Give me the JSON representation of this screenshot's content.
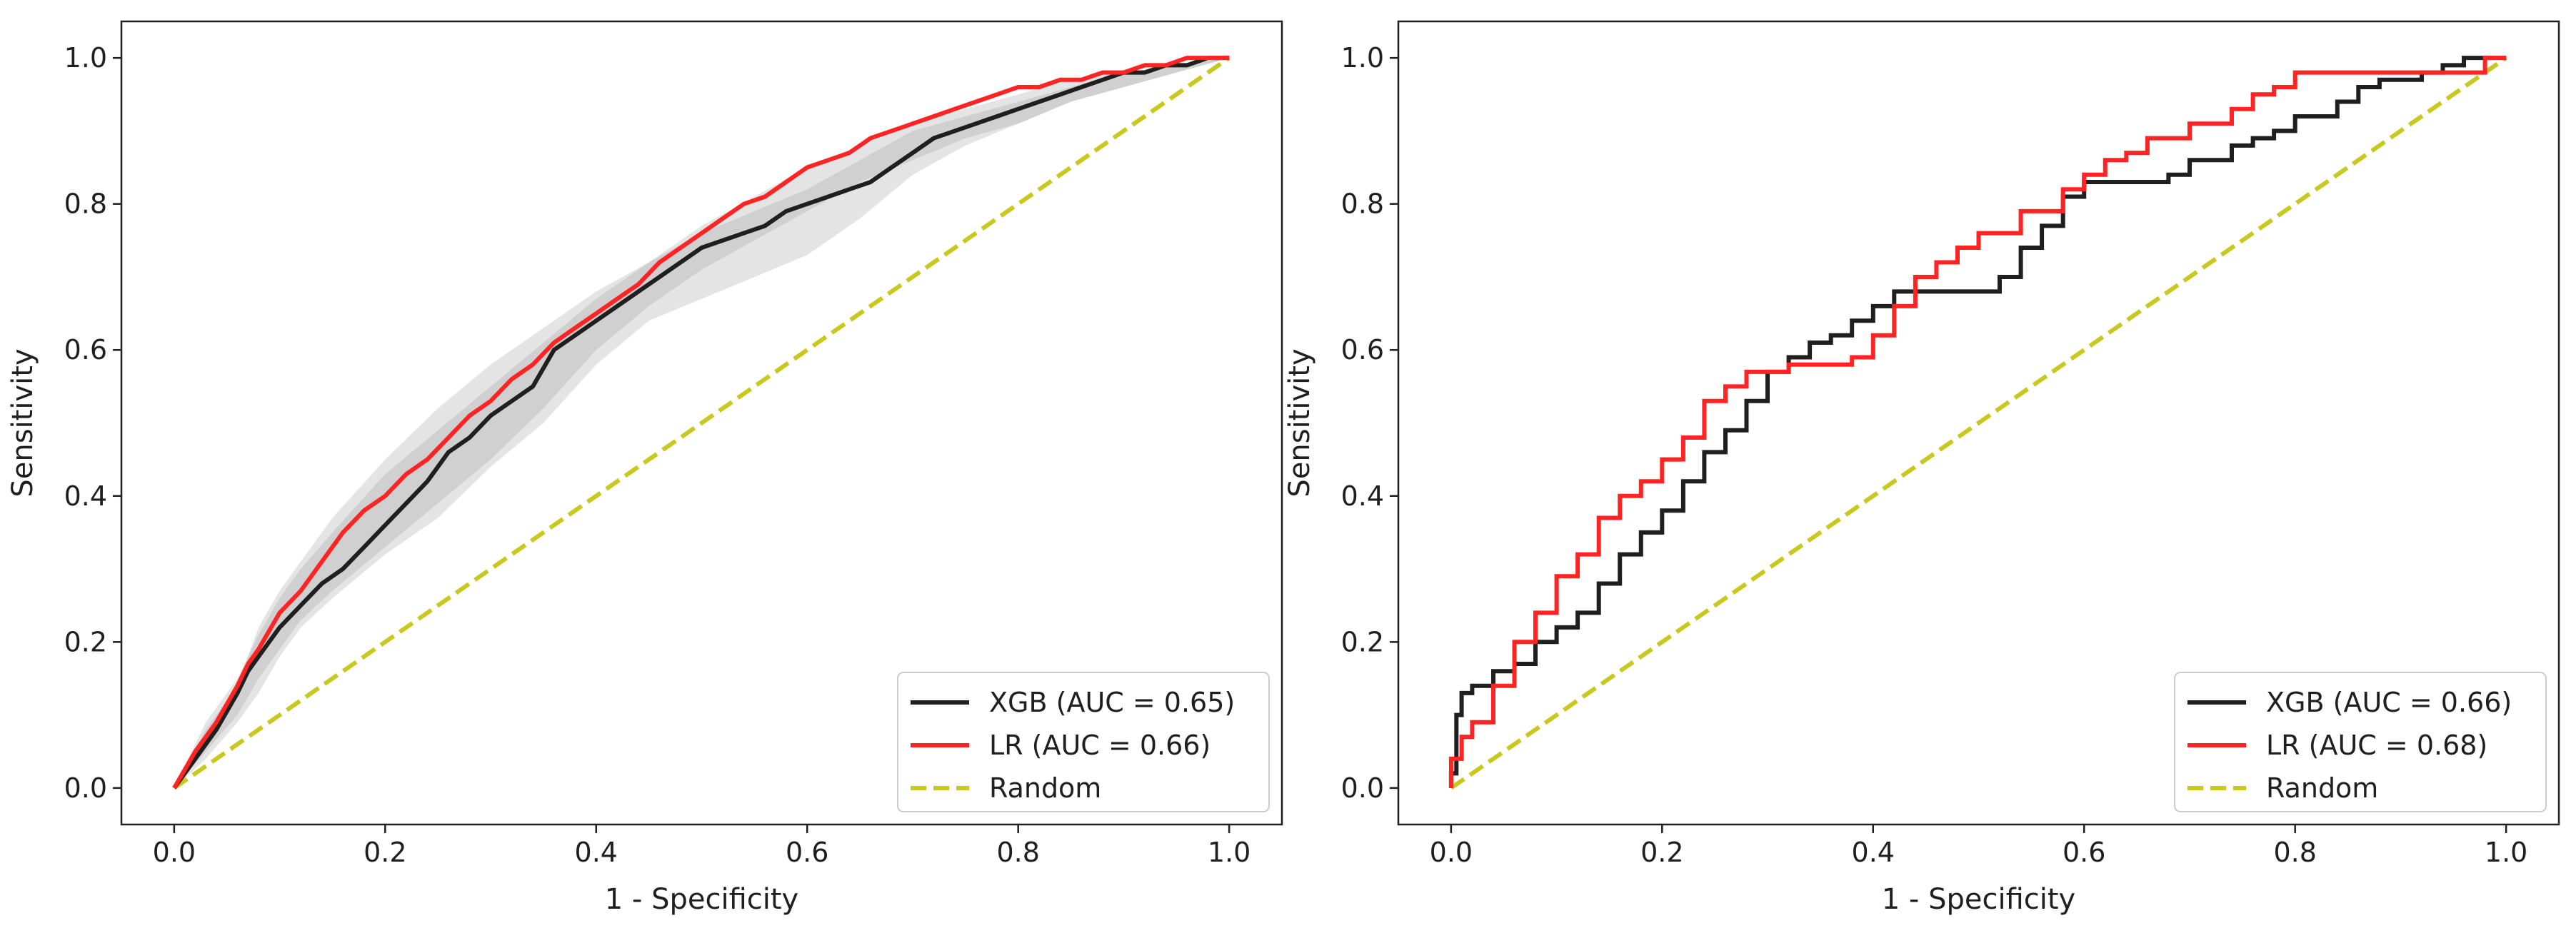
{
  "chart_data": [
    {
      "type": "line",
      "title": "",
      "xlabel": "1 - Specificity",
      "ylabel": "Sensitivity",
      "xlim": [
        -0.05,
        1.05
      ],
      "ylim": [
        -0.05,
        1.05
      ],
      "xticks": [
        0.0,
        0.2,
        0.4,
        0.6,
        0.8,
        1.0
      ],
      "yticks": [
        0.0,
        0.2,
        0.4,
        0.6,
        0.8,
        1.0
      ],
      "xtick_labels": [
        "0.0",
        "0.2",
        "0.4",
        "0.6",
        "0.8",
        "1.0"
      ],
      "ytick_labels": [
        "0.0",
        "0.2",
        "0.4",
        "0.6",
        "0.8",
        "1.0"
      ],
      "legend_position": "bottom-right",
      "confidence_bands": [
        {
          "name": "XGB band",
          "color": "#9e9e9e",
          "x": [
            0.0,
            0.03,
            0.06,
            0.08,
            0.1,
            0.12,
            0.15,
            0.2,
            0.25,
            0.3,
            0.35,
            0.4,
            0.45,
            0.5,
            0.55,
            0.6,
            0.65,
            0.7,
            0.75,
            0.8,
            0.85,
            0.9,
            0.95,
            1.0
          ],
          "lower": [
            0.0,
            0.04,
            0.09,
            0.13,
            0.18,
            0.22,
            0.26,
            0.32,
            0.37,
            0.44,
            0.5,
            0.58,
            0.64,
            0.67,
            0.7,
            0.73,
            0.78,
            0.84,
            0.88,
            0.91,
            0.94,
            0.96,
            0.98,
            1.0
          ],
          "upper": [
            0.0,
            0.08,
            0.14,
            0.22,
            0.27,
            0.31,
            0.37,
            0.45,
            0.52,
            0.58,
            0.63,
            0.68,
            0.72,
            0.76,
            0.79,
            0.82,
            0.86,
            0.9,
            0.92,
            0.94,
            0.96,
            0.98,
            0.99,
            1.0
          ]
        },
        {
          "name": "LR band",
          "color": "#9e9e9e",
          "x": [
            0.0,
            0.03,
            0.06,
            0.08,
            0.1,
            0.12,
            0.15,
            0.2,
            0.25,
            0.3,
            0.35,
            0.4,
            0.45,
            0.5,
            0.55,
            0.6,
            0.65,
            0.7,
            0.75,
            0.8,
            0.85,
            0.9,
            0.95,
            1.0
          ],
          "lower": [
            0.0,
            0.05,
            0.1,
            0.15,
            0.19,
            0.23,
            0.27,
            0.33,
            0.39,
            0.45,
            0.52,
            0.6,
            0.66,
            0.71,
            0.75,
            0.79,
            0.83,
            0.86,
            0.89,
            0.91,
            0.94,
            0.96,
            0.98,
            1.0
          ],
          "upper": [
            0.0,
            0.09,
            0.15,
            0.21,
            0.26,
            0.3,
            0.35,
            0.43,
            0.49,
            0.55,
            0.61,
            0.67,
            0.72,
            0.77,
            0.81,
            0.85,
            0.88,
            0.91,
            0.93,
            0.95,
            0.97,
            0.98,
            0.99,
            1.0
          ]
        }
      ],
      "series": [
        {
          "name": "XGB (AUC = 0.65)",
          "color": "#1f1f1f",
          "style": "solid",
          "x": [
            0.0,
            0.02,
            0.04,
            0.06,
            0.07,
            0.08,
            0.1,
            0.12,
            0.14,
            0.16,
            0.18,
            0.2,
            0.22,
            0.24,
            0.26,
            0.28,
            0.3,
            0.32,
            0.34,
            0.36,
            0.38,
            0.4,
            0.42,
            0.44,
            0.46,
            0.48,
            0.5,
            0.52,
            0.54,
            0.56,
            0.58,
            0.6,
            0.62,
            0.64,
            0.66,
            0.68,
            0.7,
            0.72,
            0.74,
            0.76,
            0.78,
            0.8,
            0.82,
            0.84,
            0.86,
            0.88,
            0.9,
            0.92,
            0.94,
            0.96,
            0.98,
            1.0
          ],
          "y": [
            0.0,
            0.04,
            0.08,
            0.13,
            0.16,
            0.18,
            0.22,
            0.25,
            0.28,
            0.3,
            0.33,
            0.36,
            0.39,
            0.42,
            0.46,
            0.48,
            0.51,
            0.53,
            0.55,
            0.6,
            0.62,
            0.64,
            0.66,
            0.68,
            0.7,
            0.72,
            0.74,
            0.75,
            0.76,
            0.77,
            0.79,
            0.8,
            0.81,
            0.82,
            0.83,
            0.85,
            0.87,
            0.89,
            0.9,
            0.91,
            0.92,
            0.93,
            0.94,
            0.95,
            0.96,
            0.97,
            0.98,
            0.98,
            0.99,
            0.99,
            1.0,
            1.0
          ]
        },
        {
          "name": "LR (AUC = 0.66)",
          "color": "#ff2424",
          "style": "solid",
          "x": [
            0.0,
            0.02,
            0.04,
            0.06,
            0.07,
            0.08,
            0.1,
            0.12,
            0.14,
            0.16,
            0.18,
            0.2,
            0.22,
            0.24,
            0.26,
            0.28,
            0.3,
            0.32,
            0.34,
            0.36,
            0.38,
            0.4,
            0.42,
            0.44,
            0.46,
            0.48,
            0.5,
            0.52,
            0.54,
            0.56,
            0.58,
            0.6,
            0.62,
            0.64,
            0.66,
            0.68,
            0.7,
            0.72,
            0.74,
            0.76,
            0.78,
            0.8,
            0.82,
            0.84,
            0.86,
            0.88,
            0.9,
            0.92,
            0.94,
            0.96,
            0.98,
            1.0
          ],
          "y": [
            0.0,
            0.05,
            0.09,
            0.14,
            0.17,
            0.19,
            0.24,
            0.27,
            0.31,
            0.35,
            0.38,
            0.4,
            0.43,
            0.45,
            0.48,
            0.51,
            0.53,
            0.56,
            0.58,
            0.61,
            0.63,
            0.65,
            0.67,
            0.69,
            0.72,
            0.74,
            0.76,
            0.78,
            0.8,
            0.81,
            0.83,
            0.85,
            0.86,
            0.87,
            0.89,
            0.9,
            0.91,
            0.92,
            0.93,
            0.94,
            0.95,
            0.96,
            0.96,
            0.97,
            0.97,
            0.98,
            0.98,
            0.99,
            0.99,
            1.0,
            1.0,
            1.0
          ]
        },
        {
          "name": "Random",
          "color": "#c8c81e",
          "style": "dashed",
          "x": [
            0.0,
            1.0
          ],
          "y": [
            0.0,
            1.0
          ]
        }
      ]
    },
    {
      "type": "line",
      "title": "",
      "xlabel": "1 - Specificity",
      "ylabel": "Sensitivity",
      "xlim": [
        -0.05,
        1.05
      ],
      "ylim": [
        -0.05,
        1.05
      ],
      "xticks": [
        0.0,
        0.2,
        0.4,
        0.6,
        0.8,
        1.0
      ],
      "yticks": [
        0.0,
        0.2,
        0.4,
        0.6,
        0.8,
        1.0
      ],
      "xtick_labels": [
        "0.0",
        "0.2",
        "0.4",
        "0.6",
        "0.8",
        "1.0"
      ],
      "ytick_labels": [
        "0.0",
        "0.2",
        "0.4",
        "0.6",
        "0.8",
        "1.0"
      ],
      "legend_position": "bottom-right",
      "confidence_bands": [],
      "series": [
        {
          "name": "XGB (AUC = 0.66)",
          "color": "#1f1f1f",
          "style": "step",
          "x": [
            0.0,
            0.0,
            0.005,
            0.005,
            0.01,
            0.01,
            0.02,
            0.02,
            0.04,
            0.04,
            0.06,
            0.06,
            0.08,
            0.08,
            0.1,
            0.1,
            0.12,
            0.12,
            0.14,
            0.14,
            0.16,
            0.16,
            0.18,
            0.18,
            0.2,
            0.2,
            0.22,
            0.22,
            0.24,
            0.24,
            0.26,
            0.26,
            0.28,
            0.28,
            0.3,
            0.3,
            0.32,
            0.32,
            0.34,
            0.34,
            0.36,
            0.36,
            0.38,
            0.38,
            0.4,
            0.4,
            0.42,
            0.42,
            0.52,
            0.52,
            0.54,
            0.54,
            0.56,
            0.56,
            0.58,
            0.58,
            0.6,
            0.6,
            0.68,
            0.68,
            0.7,
            0.7,
            0.74,
            0.74,
            0.76,
            0.76,
            0.78,
            0.78,
            0.8,
            0.8,
            0.84,
            0.84,
            0.86,
            0.86,
            0.88,
            0.88,
            0.92,
            0.92,
            0.94,
            0.94,
            0.96,
            0.96,
            1.0
          ],
          "y": [
            0.0,
            0.02,
            0.02,
            0.1,
            0.1,
            0.13,
            0.13,
            0.14,
            0.14,
            0.16,
            0.16,
            0.17,
            0.17,
            0.2,
            0.2,
            0.22,
            0.22,
            0.24,
            0.24,
            0.28,
            0.28,
            0.32,
            0.32,
            0.35,
            0.35,
            0.38,
            0.38,
            0.42,
            0.42,
            0.46,
            0.46,
            0.49,
            0.49,
            0.53,
            0.53,
            0.57,
            0.57,
            0.59,
            0.59,
            0.61,
            0.61,
            0.62,
            0.62,
            0.64,
            0.64,
            0.66,
            0.66,
            0.68,
            0.68,
            0.7,
            0.7,
            0.74,
            0.74,
            0.77,
            0.77,
            0.81,
            0.81,
            0.83,
            0.83,
            0.84,
            0.84,
            0.86,
            0.86,
            0.88,
            0.88,
            0.89,
            0.89,
            0.9,
            0.9,
            0.92,
            0.92,
            0.94,
            0.94,
            0.96,
            0.96,
            0.97,
            0.97,
            0.98,
            0.98,
            0.99,
            0.99,
            1.0,
            1.0
          ]
        },
        {
          "name": "LR (AUC = 0.68)",
          "color": "#ff2424",
          "style": "step",
          "x": [
            0.0,
            0.0,
            0.01,
            0.01,
            0.02,
            0.02,
            0.04,
            0.04,
            0.06,
            0.06,
            0.08,
            0.08,
            0.1,
            0.1,
            0.12,
            0.12,
            0.14,
            0.14,
            0.16,
            0.16,
            0.18,
            0.18,
            0.2,
            0.2,
            0.22,
            0.22,
            0.24,
            0.24,
            0.26,
            0.26,
            0.28,
            0.28,
            0.3,
            0.3,
            0.32,
            0.32,
            0.38,
            0.38,
            0.4,
            0.4,
            0.42,
            0.42,
            0.44,
            0.44,
            0.46,
            0.46,
            0.48,
            0.48,
            0.5,
            0.5,
            0.54,
            0.54,
            0.58,
            0.58,
            0.6,
            0.6,
            0.62,
            0.62,
            0.64,
            0.64,
            0.66,
            0.66,
            0.7,
            0.7,
            0.74,
            0.74,
            0.76,
            0.76,
            0.78,
            0.78,
            0.8,
            0.8,
            0.84,
            0.84,
            0.94,
            0.94,
            0.98,
            0.98,
            1.0
          ],
          "y": [
            0.0,
            0.04,
            0.04,
            0.07,
            0.07,
            0.09,
            0.09,
            0.14,
            0.14,
            0.2,
            0.2,
            0.24,
            0.24,
            0.29,
            0.29,
            0.32,
            0.32,
            0.37,
            0.37,
            0.4,
            0.4,
            0.42,
            0.42,
            0.45,
            0.45,
            0.48,
            0.48,
            0.53,
            0.53,
            0.55,
            0.55,
            0.57,
            0.57,
            0.57,
            0.57,
            0.58,
            0.58,
            0.59,
            0.59,
            0.62,
            0.62,
            0.66,
            0.66,
            0.7,
            0.7,
            0.72,
            0.72,
            0.74,
            0.74,
            0.76,
            0.76,
            0.79,
            0.79,
            0.82,
            0.82,
            0.84,
            0.84,
            0.86,
            0.86,
            0.87,
            0.87,
            0.89,
            0.89,
            0.91,
            0.91,
            0.93,
            0.93,
            0.95,
            0.95,
            0.96,
            0.96,
            0.98,
            0.98,
            0.98,
            0.98,
            0.98,
            0.98,
            1.0,
            1.0
          ]
        },
        {
          "name": "Random",
          "color": "#c8c81e",
          "style": "dashed",
          "x": [
            0.0,
            1.0
          ],
          "y": [
            0.0,
            1.0
          ]
        }
      ]
    }
  ]
}
